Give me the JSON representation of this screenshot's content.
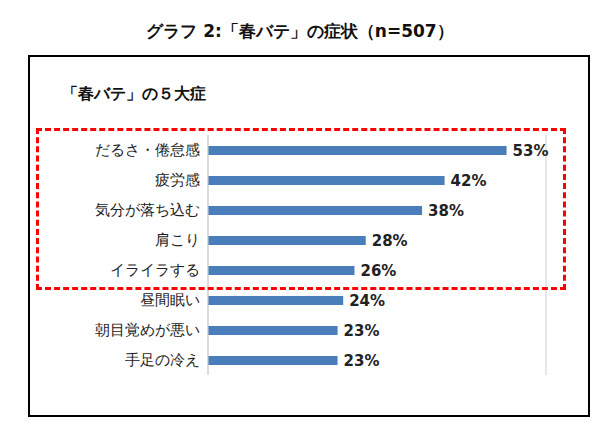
{
  "chart_data": {
    "type": "bar",
    "title": "グラフ 2:「春バテ」の症状（n=507）",
    "subtitle": "「春バテ」の５大症",
    "categories": [
      "だるさ・倦怠感",
      "疲労感",
      "気分が落ち込む",
      "肩こり",
      "イライラする",
      "昼間眠い",
      "朝目覚めが悪い",
      "手足の冷え"
    ],
    "values": [
      53,
      42,
      38,
      28,
      26,
      24,
      23,
      23
    ],
    "value_labels": [
      "53%",
      "42%",
      "38%",
      "28%",
      "26%",
      "24%",
      "23%",
      "23%"
    ],
    "color": "#4a7ebb",
    "orientation": "horizontal",
    "xlim": [
      0,
      60
    ],
    "xticks": [
      0,
      20,
      40,
      60
    ],
    "grid": true,
    "data_labels": true,
    "tick_labels": "y"
  }
}
